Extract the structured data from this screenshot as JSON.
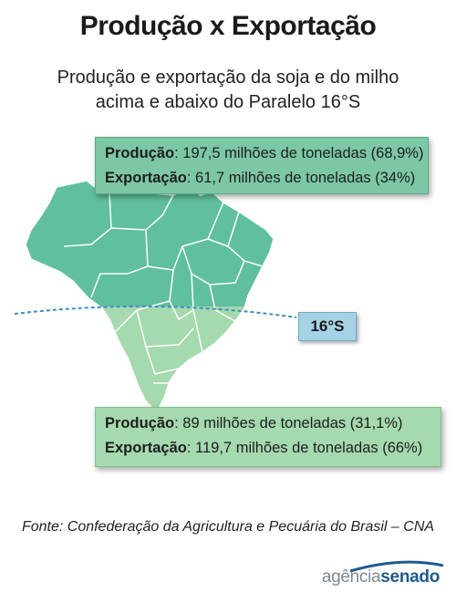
{
  "title": "Produção x Exportação",
  "subtitle": {
    "line1": "Produção e exportação da soja e do milho",
    "line2": "acima e abaixo do Paralelo 16°S"
  },
  "above": {
    "production_label": "Produção",
    "production_value": ": 197,5 milhões de toneladas (68,9%)",
    "export_label": "Exportação",
    "export_value": ": 61,7 milhões de toneladas (34%)"
  },
  "below": {
    "production_label": "Produção",
    "production_value": ": 89 milhões de toneladas (31,1%)",
    "export_label": "Exportação",
    "export_value": ": 119,7 milhões de toneladas (66%)"
  },
  "parallel_label": "16°S",
  "source": "Fonte: Confederação da Agricultura e Pecuária do Brasil – CNA",
  "logo": {
    "part1": "agência",
    "part2": "senado"
  },
  "colors": {
    "north_fill": "#5fbf9f",
    "south_fill": "#a5d9ae",
    "border": "#ffffff",
    "parallel_line": "#3b8ec2",
    "logo_blue": "#1e5a8c"
  }
}
